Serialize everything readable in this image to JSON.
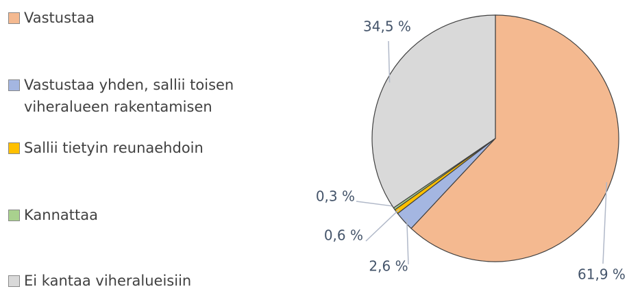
{
  "chart_data": {
    "type": "pie",
    "categories": [
      "Vastustaa",
      "Vastustaa yhden, sallii toisen viheralueen rakentamisen",
      "Sallii tietyin reunaehdoin",
      "Kannattaa",
      "Ei kantaa viheralueisiin"
    ],
    "values": [
      61.9,
      2.6,
      0.6,
      0.3,
      34.5
    ],
    "value_labels": [
      "61,9 %",
      "2,6 %",
      "0,6 %",
      "0,3 %",
      "34,5 %"
    ],
    "colors": [
      "#f4b990",
      "#a4b6e1",
      "#ffc000",
      "#a9d18e",
      "#d9d9d9"
    ],
    "legend": "left"
  }
}
